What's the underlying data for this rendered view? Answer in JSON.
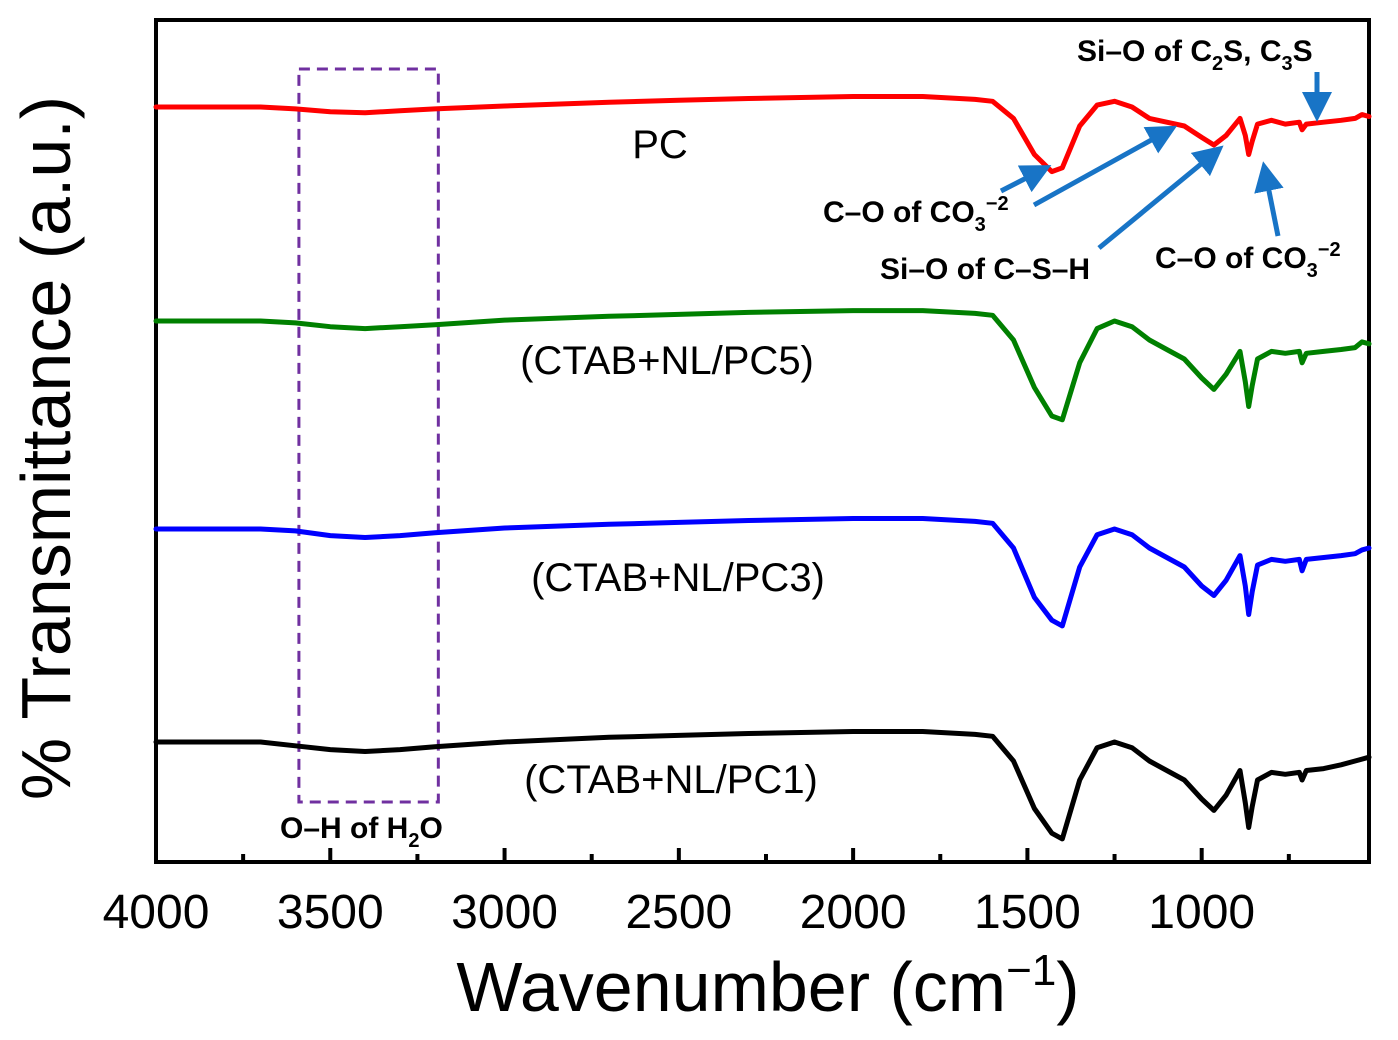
{
  "chart_data": {
    "type": "line",
    "title": "",
    "xlabel": "Wavenumber (cm",
    "xlabel_sup": "−1",
    "xlabel_close": ")",
    "ylabel": "% Transmittance (a.u.)",
    "xlim": [
      4000,
      520
    ],
    "x_reversed": true,
    "y_ticks_shown": false,
    "x_ticks": [
      "4000",
      "3500",
      "3000",
      "2500",
      "2000",
      "1500",
      "1000"
    ],
    "grid": false,
    "series": [
      {
        "name": "PC",
        "color": "#ff0000",
        "points": [
          [
            4000,
            0
          ],
          [
            3700,
            0
          ],
          [
            3600,
            -0.1
          ],
          [
            3500,
            -0.25
          ],
          [
            3400,
            -0.3
          ],
          [
            3300,
            -0.2
          ],
          [
            3200,
            -0.1
          ],
          [
            3000,
            0.05
          ],
          [
            2700,
            0.25
          ],
          [
            2500,
            0.35
          ],
          [
            2300,
            0.45
          ],
          [
            2000,
            0.55
          ],
          [
            1800,
            0.55
          ],
          [
            1650,
            0.4
          ],
          [
            1600,
            0.3
          ],
          [
            1540,
            -0.6
          ],
          [
            1480,
            -2.5
          ],
          [
            1430,
            -3.4
          ],
          [
            1400,
            -3.2
          ],
          [
            1350,
            -1.0
          ],
          [
            1300,
            0.1
          ],
          [
            1250,
            0.3
          ],
          [
            1200,
            0.0
          ],
          [
            1150,
            -0.6
          ],
          [
            1100,
            -0.8
          ],
          [
            1050,
            -1.0
          ],
          [
            1000,
            -1.6
          ],
          [
            965,
            -2.0
          ],
          [
            930,
            -1.5
          ],
          [
            890,
            -0.6
          ],
          [
            875,
            -1.5
          ],
          [
            865,
            -2.5
          ],
          [
            855,
            -1.8
          ],
          [
            840,
            -0.9
          ],
          [
            800,
            -0.7
          ],
          [
            760,
            -0.9
          ],
          [
            720,
            -0.8
          ],
          [
            712,
            -1.2
          ],
          [
            700,
            -0.9
          ],
          [
            650,
            -0.8
          ],
          [
            600,
            -0.7
          ],
          [
            560,
            -0.6
          ],
          [
            540,
            -0.4
          ],
          [
            520,
            -0.5
          ]
        ]
      },
      {
        "name": "(CTAB+NL/PC5)",
        "color": "#008000",
        "points": [
          [
            4000,
            0
          ],
          [
            3700,
            0
          ],
          [
            3600,
            -0.1
          ],
          [
            3500,
            -0.3
          ],
          [
            3400,
            -0.4
          ],
          [
            3300,
            -0.3
          ],
          [
            3200,
            -0.2
          ],
          [
            3000,
            0.05
          ],
          [
            2700,
            0.25
          ],
          [
            2500,
            0.35
          ],
          [
            2300,
            0.45
          ],
          [
            2000,
            0.55
          ],
          [
            1800,
            0.55
          ],
          [
            1650,
            0.4
          ],
          [
            1600,
            0.3
          ],
          [
            1540,
            -1.0
          ],
          [
            1480,
            -3.5
          ],
          [
            1430,
            -5.0
          ],
          [
            1400,
            -5.2
          ],
          [
            1350,
            -2.2
          ],
          [
            1300,
            -0.4
          ],
          [
            1250,
            0.0
          ],
          [
            1200,
            -0.3
          ],
          [
            1150,
            -1.0
          ],
          [
            1100,
            -1.5
          ],
          [
            1050,
            -2.0
          ],
          [
            1000,
            -3.0
          ],
          [
            965,
            -3.6
          ],
          [
            930,
            -2.8
          ],
          [
            890,
            -1.6
          ],
          [
            875,
            -3.2
          ],
          [
            865,
            -4.5
          ],
          [
            855,
            -3.4
          ],
          [
            840,
            -2.0
          ],
          [
            800,
            -1.6
          ],
          [
            760,
            -1.7
          ],
          [
            720,
            -1.6
          ],
          [
            712,
            -2.2
          ],
          [
            700,
            -1.7
          ],
          [
            650,
            -1.6
          ],
          [
            600,
            -1.5
          ],
          [
            560,
            -1.4
          ],
          [
            540,
            -1.1
          ],
          [
            520,
            -1.2
          ]
        ]
      },
      {
        "name": "(CTAB+NL/PC3)",
        "color": "#0000ff",
        "points": [
          [
            4000,
            0
          ],
          [
            3700,
            0
          ],
          [
            3600,
            -0.1
          ],
          [
            3500,
            -0.35
          ],
          [
            3400,
            -0.45
          ],
          [
            3300,
            -0.35
          ],
          [
            3200,
            -0.2
          ],
          [
            3000,
            0.05
          ],
          [
            2700,
            0.25
          ],
          [
            2500,
            0.35
          ],
          [
            2300,
            0.45
          ],
          [
            2000,
            0.55
          ],
          [
            1800,
            0.55
          ],
          [
            1650,
            0.4
          ],
          [
            1600,
            0.3
          ],
          [
            1540,
            -1.0
          ],
          [
            1480,
            -3.6
          ],
          [
            1430,
            -4.8
          ],
          [
            1400,
            -5.1
          ],
          [
            1350,
            -2.0
          ],
          [
            1300,
            -0.3
          ],
          [
            1250,
            0.0
          ],
          [
            1200,
            -0.3
          ],
          [
            1150,
            -1.0
          ],
          [
            1100,
            -1.5
          ],
          [
            1050,
            -2.0
          ],
          [
            1000,
            -3.0
          ],
          [
            965,
            -3.5
          ],
          [
            930,
            -2.7
          ],
          [
            890,
            -1.4
          ],
          [
            875,
            -3.0
          ],
          [
            865,
            -4.5
          ],
          [
            855,
            -3.3
          ],
          [
            840,
            -1.9
          ],
          [
            800,
            -1.6
          ],
          [
            760,
            -1.7
          ],
          [
            720,
            -1.6
          ],
          [
            712,
            -2.2
          ],
          [
            700,
            -1.6
          ],
          [
            650,
            -1.5
          ],
          [
            600,
            -1.4
          ],
          [
            560,
            -1.3
          ],
          [
            540,
            -1.1
          ],
          [
            520,
            -1.0
          ]
        ]
      },
      {
        "name": "(CTAB+NL/PC1)",
        "color": "#000000",
        "points": [
          [
            4000,
            0
          ],
          [
            3700,
            0
          ],
          [
            3600,
            -0.2
          ],
          [
            3500,
            -0.4
          ],
          [
            3400,
            -0.5
          ],
          [
            3300,
            -0.4
          ],
          [
            3200,
            -0.25
          ],
          [
            3000,
            0.0
          ],
          [
            2700,
            0.25
          ],
          [
            2500,
            0.35
          ],
          [
            2300,
            0.45
          ],
          [
            2000,
            0.55
          ],
          [
            1800,
            0.55
          ],
          [
            1650,
            0.4
          ],
          [
            1600,
            0.3
          ],
          [
            1540,
            -1.0
          ],
          [
            1480,
            -3.5
          ],
          [
            1430,
            -4.8
          ],
          [
            1400,
            -5.1
          ],
          [
            1350,
            -2.0
          ],
          [
            1300,
            -0.3
          ],
          [
            1250,
            0.0
          ],
          [
            1200,
            -0.3
          ],
          [
            1150,
            -1.0
          ],
          [
            1100,
            -1.5
          ],
          [
            1050,
            -2.0
          ],
          [
            1000,
            -3.0
          ],
          [
            965,
            -3.6
          ],
          [
            930,
            -2.8
          ],
          [
            890,
            -1.5
          ],
          [
            875,
            -3.2
          ],
          [
            865,
            -4.5
          ],
          [
            855,
            -3.4
          ],
          [
            840,
            -2.0
          ],
          [
            800,
            -1.6
          ],
          [
            760,
            -1.7
          ],
          [
            720,
            -1.6
          ],
          [
            712,
            -2.0
          ],
          [
            700,
            -1.5
          ],
          [
            650,
            -1.4
          ],
          [
            600,
            -1.2
          ],
          [
            560,
            -1.0
          ],
          [
            540,
            -0.9
          ],
          [
            520,
            -0.8
          ]
        ]
      }
    ],
    "annotations": {
      "oh_box_range": [
        3590,
        3190
      ],
      "oh_text": "O–H of H",
      "oh_sub": "2",
      "oh_tail": "O",
      "co3_a_text": "C–O of CO",
      "co3_a_sub": "3",
      "co3_a_sup": "−2",
      "csh_text": "Si–O of C–S–H",
      "co3_b_text": "C–O of CO",
      "co3_b_sub": "3",
      "co3_b_sup": "−2",
      "sio_text_1": "Si–O of C",
      "sio_sub_1": "2",
      "sio_text_2": "S, C",
      "sio_sub_2": "3",
      "sio_text_3": "S",
      "arrow_color": "#1874c6",
      "box_color": "#7030a0"
    }
  }
}
